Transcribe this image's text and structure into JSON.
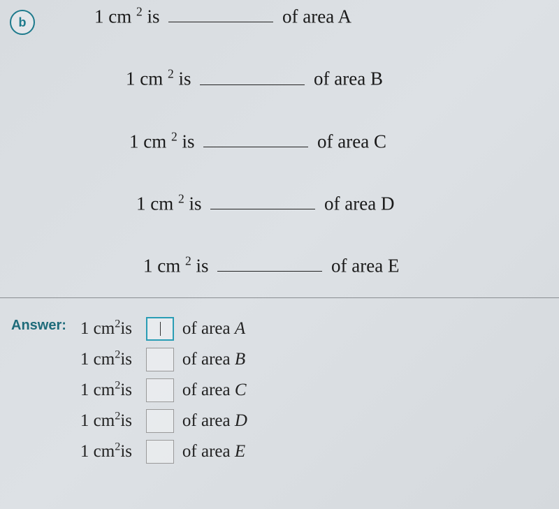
{
  "badge": {
    "letter": "b"
  },
  "question": {
    "unit_label": "1 cm",
    "unit_exponent": "2",
    "verb": "is",
    "suffix_prefix": "of area",
    "lines": [
      {
        "area": "A"
      },
      {
        "area": "B"
      },
      {
        "area": "C"
      },
      {
        "area": "D"
      },
      {
        "area": "E"
      }
    ]
  },
  "answer": {
    "label": "Answer:",
    "unit_label": "1 cm",
    "unit_exponent": "2",
    "verb": "is",
    "suffix_prefix": "of area",
    "lines": [
      {
        "area": "A",
        "active": true
      },
      {
        "area": "B",
        "active": false
      },
      {
        "area": "C",
        "active": false
      },
      {
        "area": "D",
        "active": false
      },
      {
        "area": "E",
        "active": false
      }
    ]
  },
  "colors": {
    "accent": "#1e7a8c",
    "text": "#1a1a1a",
    "divider": "#8a8e92",
    "input_border": "#999999",
    "input_active_border": "#2a9db5",
    "background_start": "#d8dce0",
    "background_end": "#d5d9dd"
  },
  "typography": {
    "question_fontsize": 27,
    "answer_fontsize": 25,
    "answer_label_fontsize": 20,
    "badge_fontsize": 18
  }
}
